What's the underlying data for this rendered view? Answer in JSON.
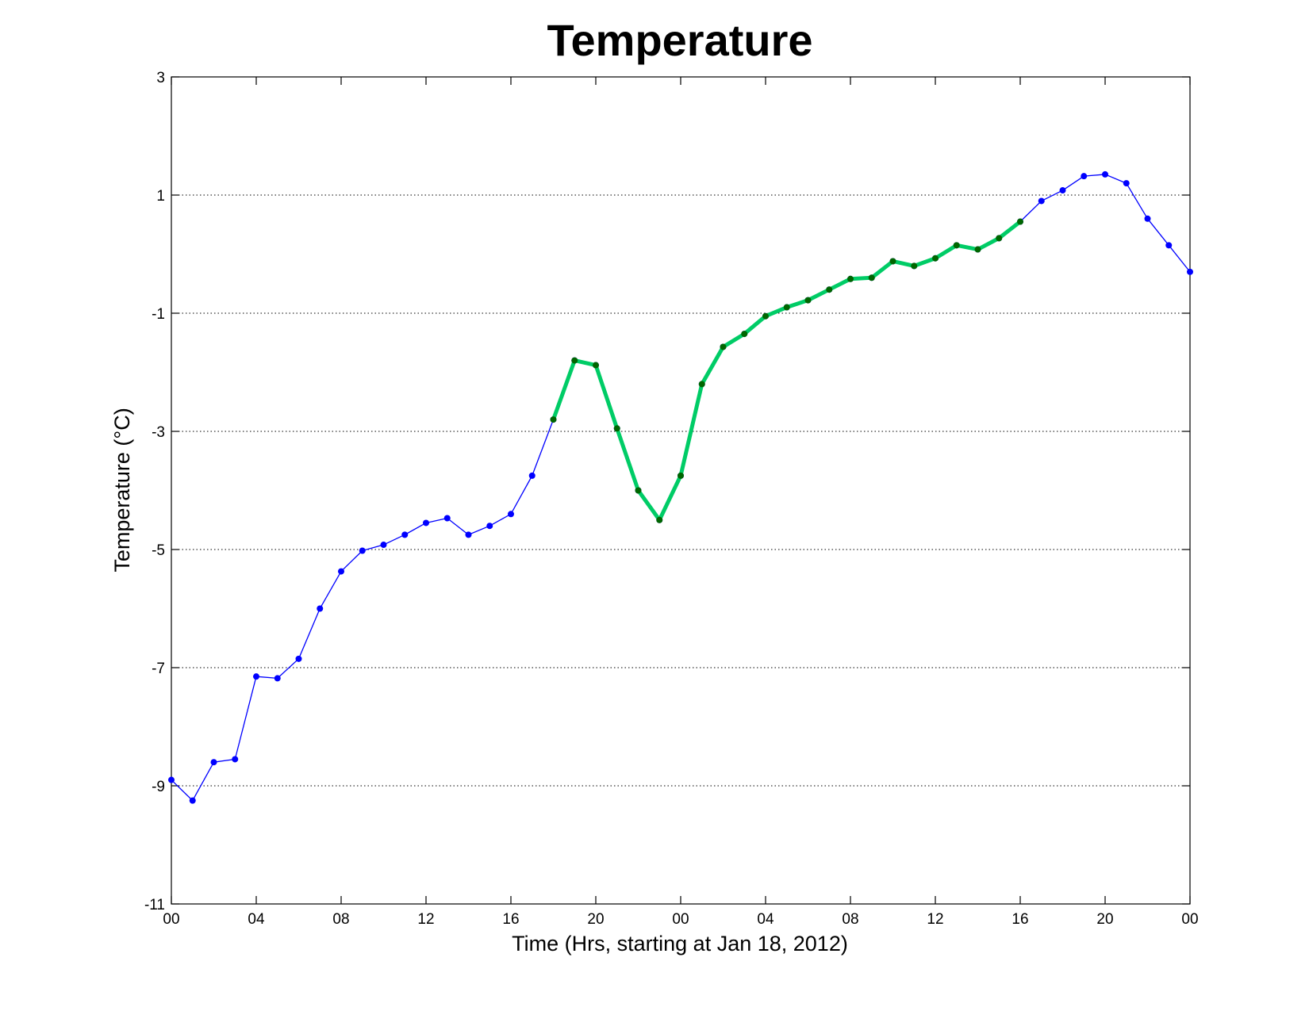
{
  "chart_data": {
    "type": "line",
    "title": "Temperature",
    "xlabel": "Time (Hrs, starting at Jan 18, 2012)",
    "ylabel": "Temperature (°C)",
    "ylim": [
      -11,
      3
    ],
    "xlim": [
      0,
      48
    ],
    "yticks": [
      -11,
      -9,
      -7,
      -5,
      -3,
      -1,
      1,
      3
    ],
    "xticks": [
      {
        "x": 0,
        "label": "00"
      },
      {
        "x": 4,
        "label": "04"
      },
      {
        "x": 8,
        "label": "08"
      },
      {
        "x": 12,
        "label": "12"
      },
      {
        "x": 16,
        "label": "16"
      },
      {
        "x": 20,
        "label": "20"
      },
      {
        "x": 24,
        "label": "00"
      },
      {
        "x": 28,
        "label": "04"
      },
      {
        "x": 32,
        "label": "08"
      },
      {
        "x": 36,
        "label": "12"
      },
      {
        "x": 40,
        "label": "16"
      },
      {
        "x": 44,
        "label": "20"
      },
      {
        "x": 48,
        "label": "00"
      }
    ],
    "grid": "horizontal-dotted",
    "series": [
      {
        "color": "#0000ff",
        "marker_color": "#0000ff",
        "line_style": "thin",
        "x": [
          0,
          1,
          2,
          3,
          4,
          5,
          6,
          7,
          8,
          9,
          10,
          11,
          12,
          13,
          14,
          15,
          16,
          17,
          18,
          19,
          20,
          21,
          22,
          23,
          24,
          25,
          26,
          27,
          28,
          29,
          30,
          31,
          32,
          33,
          34,
          35,
          36,
          37,
          38,
          39,
          40,
          41,
          42,
          43,
          44,
          45,
          46,
          47,
          48
        ],
        "values": [
          -8.9,
          -9.25,
          -8.6,
          -8.55,
          -7.15,
          -7.18,
          -6.85,
          -6.0,
          -5.37,
          -5.02,
          -4.92,
          -4.75,
          -4.55,
          -4.47,
          -4.75,
          -4.6,
          -4.4,
          -3.75,
          -2.8,
          -1.8,
          -1.88,
          -2.95,
          -4.0,
          -4.5,
          -3.75,
          -2.2,
          -1.57,
          -1.35,
          -1.05,
          -0.9,
          -0.78,
          -0.6,
          -0.42,
          -0.4,
          -0.12,
          -0.2,
          -0.07,
          0.15,
          0.08,
          0.27,
          0.55,
          0.9,
          1.08,
          1.32,
          1.35,
          1.2,
          0.6,
          0.15,
          -0.3
        ]
      },
      {
        "color": "#00cc66",
        "marker_color": "#006600",
        "line_style": "thick",
        "x": [
          18,
          19,
          20,
          21,
          22,
          23,
          24,
          25,
          26,
          27,
          28,
          29,
          30,
          31,
          32,
          33,
          34,
          35,
          36,
          37,
          38,
          39,
          40
        ],
        "values": [
          -2.8,
          -1.8,
          -1.88,
          -2.95,
          -4.0,
          -4.5,
          -3.75,
          -2.2,
          -1.57,
          -1.35,
          -1.05,
          -0.9,
          -0.78,
          -0.6,
          -0.42,
          -0.4,
          -0.12,
          -0.2,
          -0.07,
          0.15,
          0.08,
          0.27,
          0.55
        ]
      }
    ]
  }
}
